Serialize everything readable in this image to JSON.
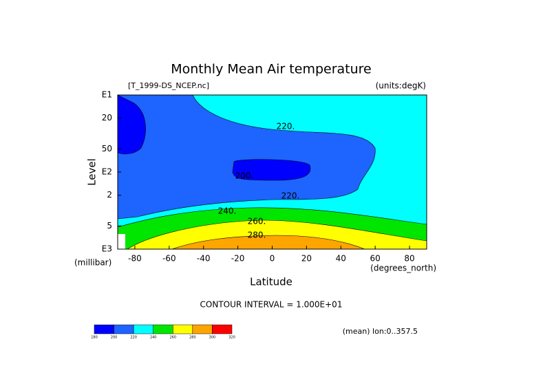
{
  "chart_data": {
    "type": "contour",
    "title": "Monthly Mean Air temperature",
    "subtitle": "[T_1999-DS_NCEP.nc]",
    "units_label": "(units:degK)",
    "x_label": "Latitude",
    "x_units": "(degrees_north)",
    "y_label": "Level",
    "y_units": "(millibar)",
    "xlim": [
      -90,
      90
    ],
    "xticks": [
      -80,
      -60,
      -40,
      -20,
      0,
      20,
      40,
      60,
      80
    ],
    "ylim": [
      10,
      1000
    ],
    "y_log": true,
    "y_inverted": true,
    "yticks": [
      {
        "value": 10,
        "label": "E1"
      },
      20,
      50,
      {
        "value": 100,
        "label": "E2"
      },
      {
        "value": 200,
        "label": "2"
      },
      {
        "value": 500,
        "label": "5"
      },
      {
        "value": 1000,
        "label": "E3"
      }
    ],
    "levels": [
      180,
      200,
      220,
      240,
      260,
      280,
      300,
      320
    ],
    "colors": [
      "#0000ff",
      "#1e64ff",
      "#00ffff",
      "#00e600",
      "#ffff00",
      "#ffa500",
      "#ff0000"
    ],
    "contour_labels": [
      {
        "value": 220,
        "label": "220."
      },
      {
        "value": 200,
        "label": "200."
      },
      {
        "value": 220,
        "label": "220."
      },
      {
        "value": 240,
        "label": "240."
      },
      {
        "value": 260,
        "label": "260."
      },
      {
        "value": 280,
        "label": "280."
      }
    ],
    "contour_interval": "CONTOUR INTERVAL = 1.000E+01",
    "footnote": "(mean) lon:0..357.5"
  }
}
